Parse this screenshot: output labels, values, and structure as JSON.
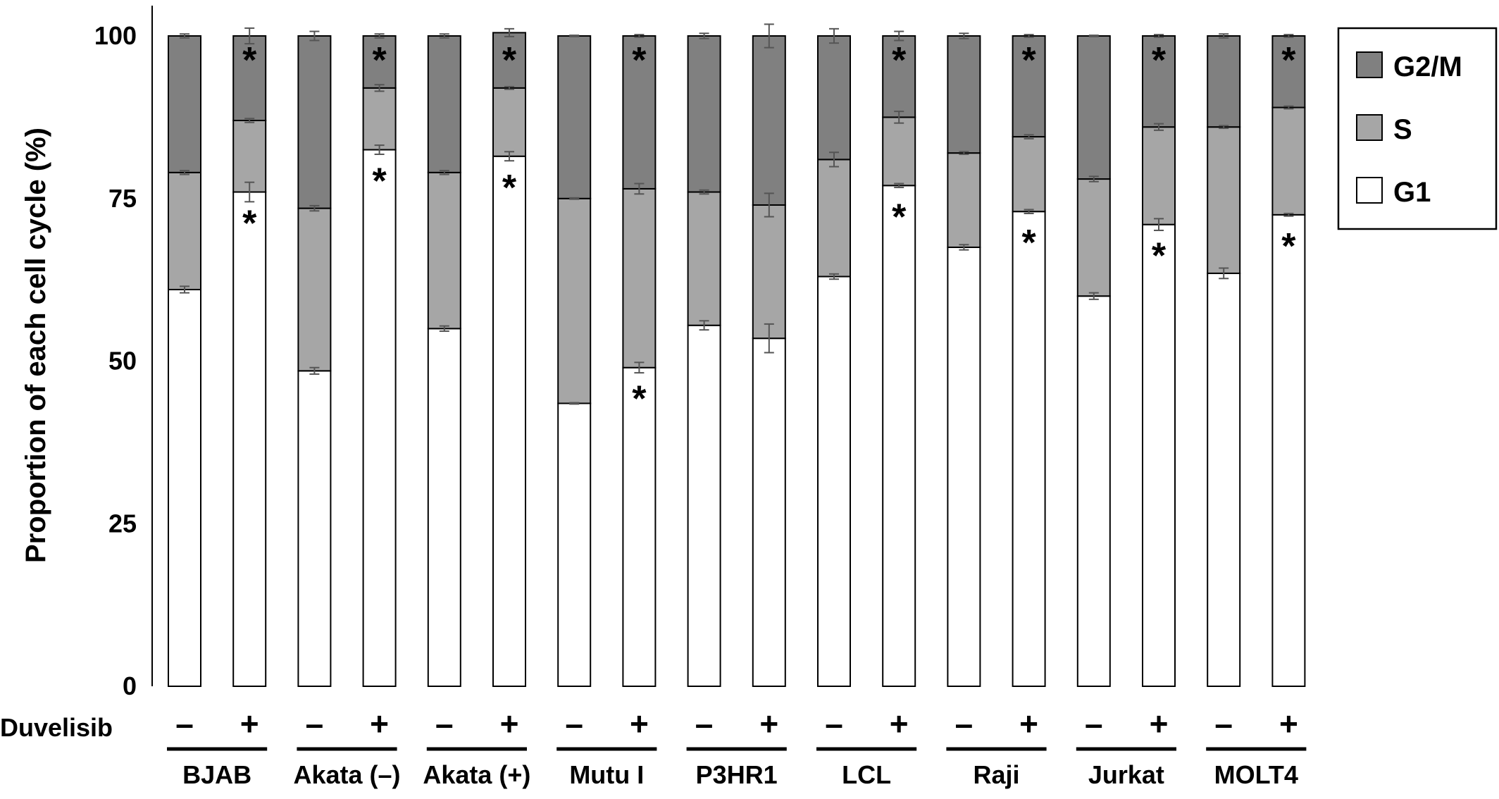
{
  "chart_data": {
    "type": "bar",
    "stacked": true,
    "ylabel": "Proportion of each cell cycle (%)",
    "yticks": [
      0,
      25,
      50,
      75,
      100
    ],
    "ylim": [
      0,
      100
    ],
    "grid": false,
    "legend_position": "top-right",
    "treatment_label": "Duvelisib",
    "treatment_signs": [
      "–",
      "+"
    ],
    "groups": [
      "BJAB",
      "Akata (–)",
      "Akata (+)",
      "Mutu I",
      "P3HR1",
      "LCL",
      "Raji",
      "Jurkat",
      "MOLT4"
    ],
    "series": [
      {
        "name": "G1",
        "color": "#ffffff",
        "values": [
          61,
          76,
          48.5,
          82.5,
          55,
          81.5,
          43.5,
          49,
          55.5,
          53.5,
          63,
          77,
          67.5,
          73,
          60,
          71,
          63.5,
          72.5
        ],
        "errors": [
          0.5,
          1.5,
          0.5,
          0.7,
          0.4,
          0.7,
          0.1,
          0.8,
          0.7,
          2.2,
          0.4,
          0.3,
          0.4,
          0.3,
          0.5,
          0.9,
          0.8,
          0.2
        ]
      },
      {
        "name": "S",
        "color": "#a6a6a6",
        "values": [
          18,
          11,
          25,
          9.5,
          24,
          10.5,
          31.5,
          27.5,
          20.5,
          20.5,
          18,
          10.5,
          14.5,
          11.5,
          18,
          15,
          22.5,
          16.5
        ],
        "errors": [
          0.3,
          0.3,
          0.4,
          0.5,
          0.3,
          0.2,
          0.1,
          0.8,
          0.3,
          1.8,
          1.1,
          0.9,
          0.2,
          0.3,
          0.4,
          0.5,
          0.2,
          0.2
        ]
      },
      {
        "name": "G2/M",
        "color": "#808080",
        "values": [
          21,
          13,
          26.5,
          8,
          21,
          8.5,
          25,
          23.5,
          24,
          26,
          19,
          12.5,
          18,
          15.5,
          22,
          14,
          14,
          11
        ],
        "errors": [
          0.3,
          1.2,
          0.7,
          0.3,
          0.3,
          0.6,
          0.1,
          0.2,
          0.4,
          1.8,
          1.1,
          0.7,
          0.4,
          0.2,
          0.1,
          0.2,
          0.3,
          0.2
        ]
      }
    ],
    "significance_marker": "*",
    "significant_bars": [
      false,
      true,
      false,
      true,
      false,
      true,
      false,
      true,
      false,
      false,
      false,
      true,
      false,
      true,
      false,
      true,
      false,
      true
    ]
  }
}
